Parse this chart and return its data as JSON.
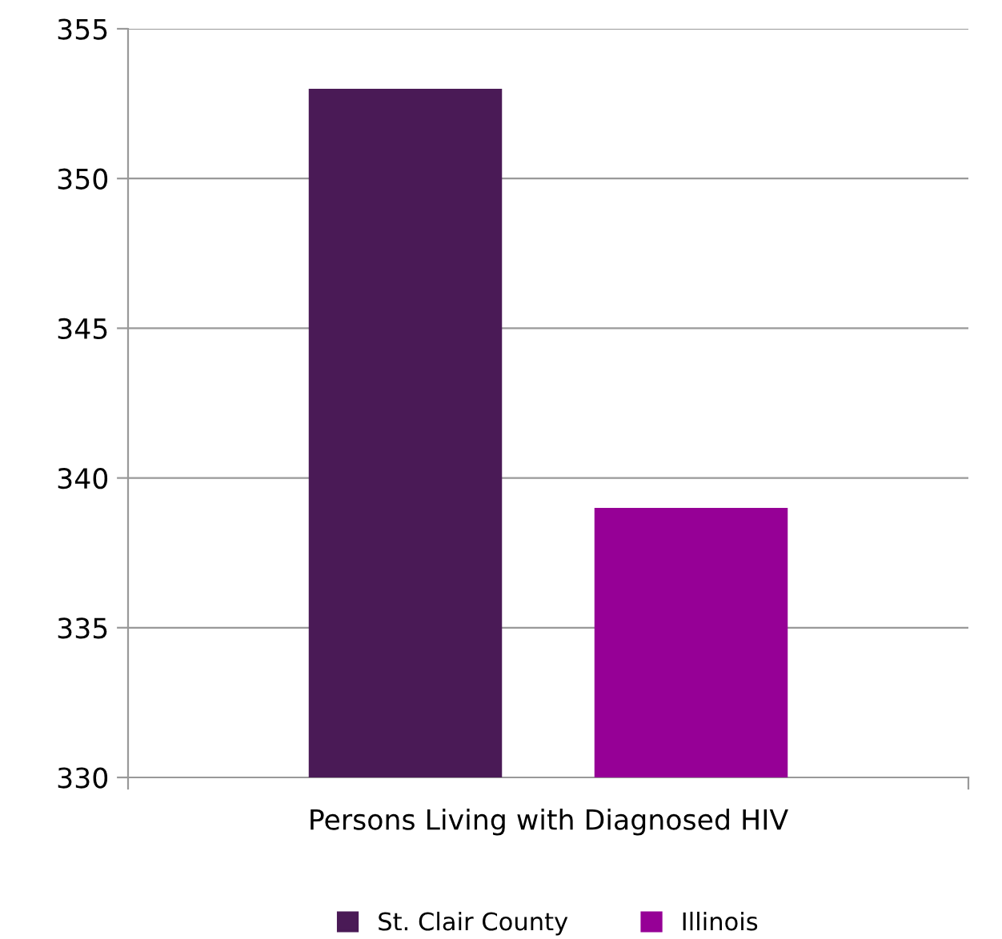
{
  "chart_data": {
    "type": "bar",
    "categories": [
      "Persons Living with Diagnosed HIV"
    ],
    "series": [
      {
        "name": "St. Clair County",
        "color": "#4a1a56",
        "values": [
          353
        ]
      },
      {
        "name": "Illinois",
        "color": "#960096",
        "values": [
          339
        ]
      }
    ],
    "ylim": [
      330,
      355
    ],
    "yticks": [
      330,
      335,
      340,
      345,
      350,
      355
    ],
    "grid": "y",
    "legend": "bottom"
  }
}
